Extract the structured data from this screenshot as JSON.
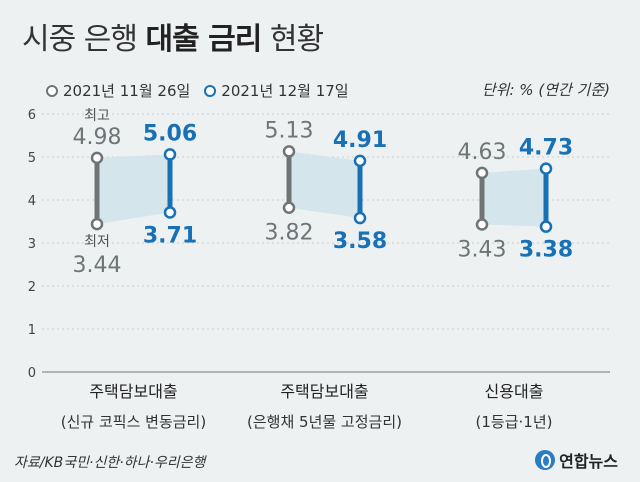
{
  "title": {
    "normal": "시중 은행 ",
    "bold": "대출 금리",
    "suffix": " 현황"
  },
  "legend": {
    "series1": "2021년 11월 26일",
    "series2": "2021년 12월 17일"
  },
  "unit": "단위: % (연간 기준)",
  "source": "자료/KB국민·신한·하나·우리은행",
  "logo": "연합뉴스",
  "labels": {
    "high": "최고",
    "low": "최저"
  },
  "colors": {
    "series1": "#6f7576",
    "series2": "#1870b5",
    "band": "#cfe3ea"
  },
  "chart_data": {
    "type": "range",
    "ylim": [
      0,
      6
    ],
    "yticks": [
      0,
      1,
      2,
      3,
      4,
      5,
      6
    ],
    "categories": [
      {
        "name": "주택담보대출",
        "sub": "(신규 코픽스 변동금리)"
      },
      {
        "name": "주택담보대출",
        "sub": "(은행채 5년물 고정금리)"
      },
      {
        "name": "신용대출",
        "sub": "(1등급·1년)"
      }
    ],
    "series": [
      {
        "name": "2021년 11월 26일",
        "high": [
          4.98,
          5.13,
          4.63
        ],
        "low": [
          3.44,
          3.82,
          3.43
        ]
      },
      {
        "name": "2021년 12월 17일",
        "high": [
          5.06,
          4.91,
          4.73
        ],
        "low": [
          3.71,
          3.58,
          3.38
        ]
      }
    ]
  }
}
